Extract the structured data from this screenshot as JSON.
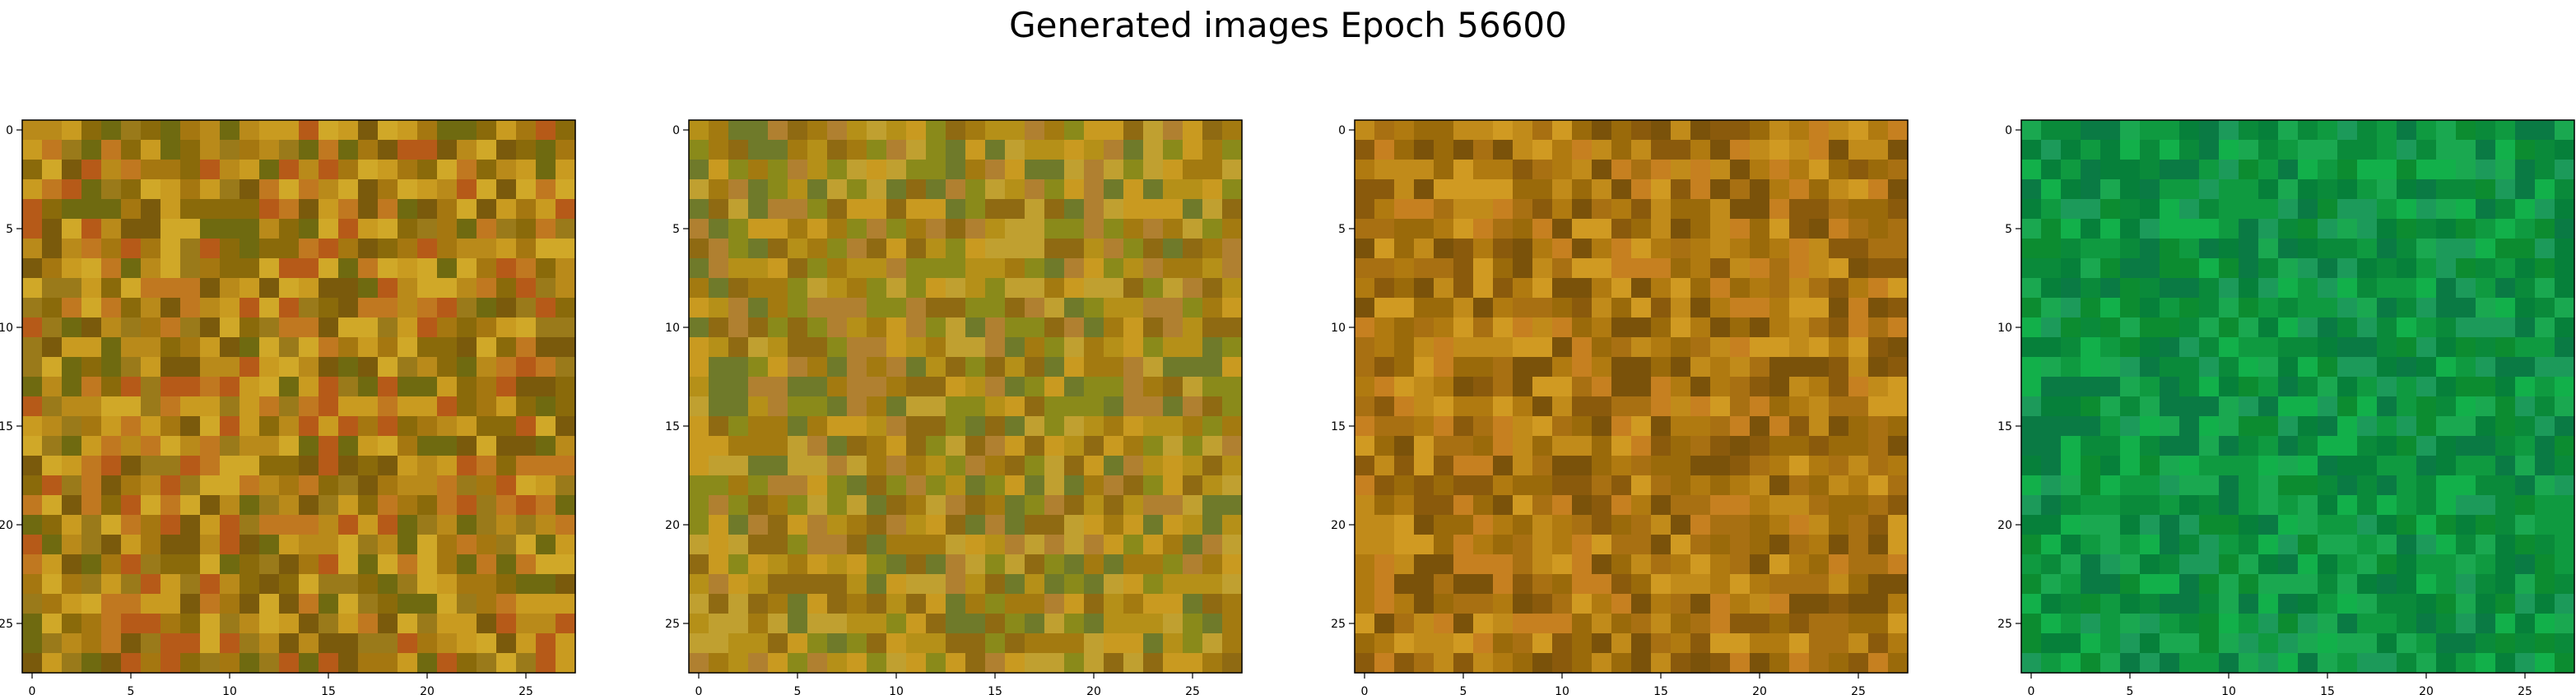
{
  "figure": {
    "title": "Generated images Epoch 56600"
  },
  "chart_data": [
    {
      "type": "heatmap",
      "title": "",
      "xlabel": "",
      "ylabel": "",
      "grid_size": 28,
      "xlim": [
        0,
        27
      ],
      "ylim": [
        27,
        0
      ],
      "xticks": [
        0,
        5,
        10,
        15,
        20,
        25
      ],
      "yticks": [
        0,
        5,
        10,
        15,
        20,
        25
      ],
      "grid": false,
      "palette": "olive-orange",
      "seed": 11
    },
    {
      "type": "heatmap",
      "title": "",
      "xlabel": "",
      "ylabel": "",
      "grid_size": 28,
      "xlim": [
        0,
        27
      ],
      "ylim": [
        27,
        0
      ],
      "xticks": [
        0,
        5,
        10,
        15,
        20,
        25
      ],
      "yticks": [
        0,
        5,
        10,
        15,
        20,
        25
      ],
      "grid": false,
      "palette": "olive-multicolor",
      "seed": 23
    },
    {
      "type": "heatmap",
      "title": "",
      "xlabel": "",
      "ylabel": "",
      "grid_size": 28,
      "xlim": [
        0,
        27
      ],
      "ylim": [
        27,
        0
      ],
      "xticks": [
        0,
        5,
        10,
        15,
        20,
        25
      ],
      "yticks": [
        0,
        5,
        10,
        15,
        20,
        25
      ],
      "grid": false,
      "palette": "brown-orange",
      "seed": 37
    },
    {
      "type": "heatmap",
      "title": "",
      "xlabel": "",
      "ylabel": "",
      "grid_size": 28,
      "xlim": [
        0,
        27
      ],
      "ylim": [
        27,
        0
      ],
      "xticks": [
        0,
        5,
        10,
        15,
        20,
        25
      ],
      "yticks": [
        0,
        5,
        10,
        15,
        20,
        25
      ],
      "grid": false,
      "palette": "green",
      "seed": 53
    }
  ],
  "colors": {
    "olive-orange": [
      "#8a6a0a",
      "#a57710",
      "#b98a1a",
      "#c99b20",
      "#7a5a0c",
      "#b65a18",
      "#d0a828",
      "#6f6a10",
      "#9a7a1a",
      "#c07820"
    ],
    "olive-multicolor": [
      "#8a8a1a",
      "#b59018",
      "#a37a10",
      "#c99a20",
      "#6f7a2a",
      "#b08030",
      "#8f6a12",
      "#c0a030"
    ],
    "brown-orange": [
      "#9a6a0a",
      "#b07a10",
      "#c18b1a",
      "#8a5a0c",
      "#d09a22",
      "#a87012",
      "#7a520a",
      "#c68020"
    ],
    "green": [
      "#0a8a3a",
      "#0f9a40",
      "#1aa850",
      "#06803a",
      "#12b04a",
      "#0a7a44",
      "#1c9a5a",
      "#0c8c30"
    ]
  }
}
